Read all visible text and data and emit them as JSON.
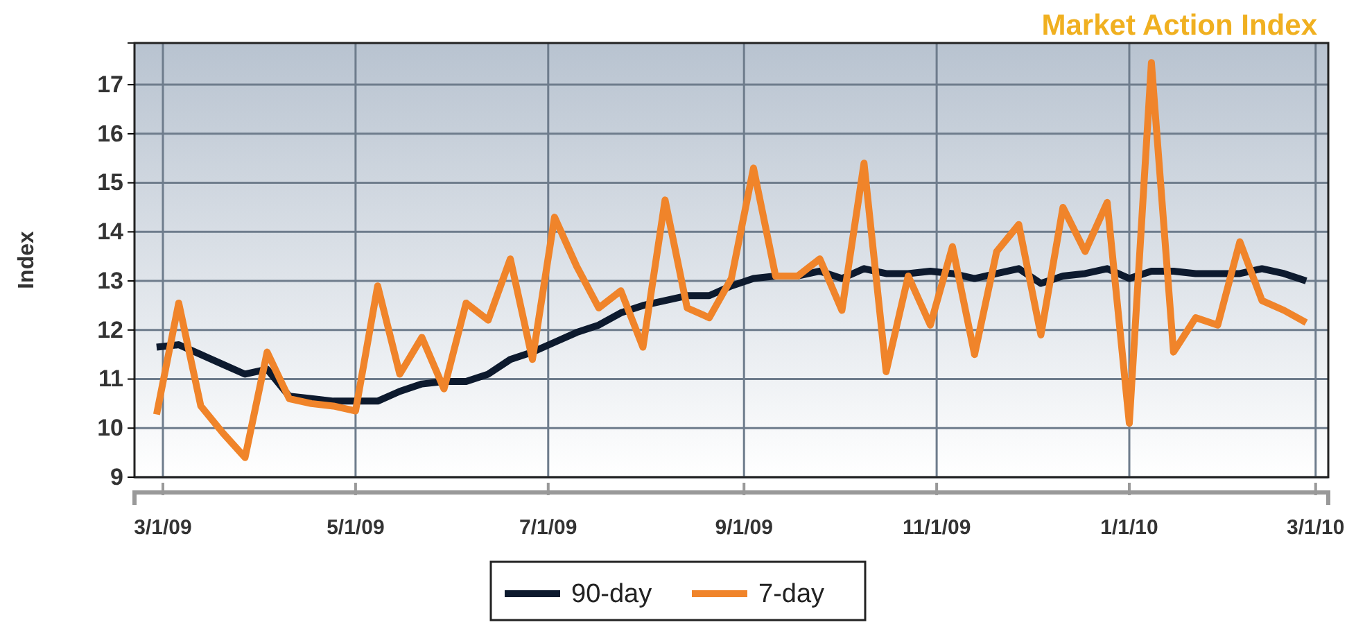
{
  "chart_data": {
    "type": "line",
    "title": "Market Action Index",
    "ylabel": "Index",
    "x": [
      "2009-02-27",
      "2009-03-06",
      "2009-03-13",
      "2009-03-20",
      "2009-03-27",
      "2009-04-03",
      "2009-04-10",
      "2009-04-17",
      "2009-04-24",
      "2009-05-01",
      "2009-05-08",
      "2009-05-15",
      "2009-05-22",
      "2009-05-29",
      "2009-06-05",
      "2009-06-12",
      "2009-06-19",
      "2009-06-26",
      "2009-07-03",
      "2009-07-10",
      "2009-07-17",
      "2009-07-24",
      "2009-07-31",
      "2009-08-07",
      "2009-08-14",
      "2009-08-21",
      "2009-08-28",
      "2009-09-04",
      "2009-09-11",
      "2009-09-18",
      "2009-09-25",
      "2009-10-02",
      "2009-10-09",
      "2009-10-16",
      "2009-10-23",
      "2009-10-30",
      "2009-11-06",
      "2009-11-13",
      "2009-11-20",
      "2009-11-27",
      "2009-12-04",
      "2009-12-11",
      "2009-12-18",
      "2009-12-25",
      "2010-01-01",
      "2010-01-08",
      "2010-01-15",
      "2010-01-22",
      "2010-01-29",
      "2010-02-05",
      "2010-02-12",
      "2010-02-19",
      "2010-02-26"
    ],
    "series": [
      {
        "name": "90-day",
        "color": "#0d1a2e",
        "values": [
          11.65,
          11.7,
          11.5,
          11.3,
          11.1,
          11.2,
          10.65,
          10.6,
          10.55,
          10.55,
          10.55,
          10.75,
          10.9,
          10.95,
          10.95,
          11.1,
          11.4,
          11.55,
          11.75,
          11.95,
          12.1,
          12.35,
          12.5,
          12.6,
          12.7,
          12.7,
          12.9,
          13.05,
          13.1,
          13.1,
          13.2,
          13.05,
          13.25,
          13.15,
          13.15,
          13.2,
          13.15,
          13.05,
          13.15,
          13.25,
          12.95,
          13.1,
          13.15,
          13.25,
          13.05,
          13.2,
          13.2,
          13.15,
          13.15,
          13.15,
          13.25,
          13.15,
          13.0
        ]
      },
      {
        "name": "7-day",
        "color": "#f0842a",
        "values": [
          10.28,
          12.55,
          10.45,
          9.9,
          9.4,
          11.55,
          10.6,
          10.5,
          10.45,
          10.35,
          12.9,
          11.1,
          11.85,
          10.8,
          12.55,
          12.2,
          13.45,
          11.4,
          14.3,
          13.3,
          12.45,
          12.8,
          11.65,
          14.65,
          12.45,
          12.25,
          13.05,
          15.3,
          13.1,
          13.1,
          13.45,
          12.4,
          15.4,
          11.15,
          13.1,
          12.1,
          13.7,
          11.5,
          13.6,
          14.15,
          11.9,
          14.5,
          13.6,
          14.6,
          10.1,
          17.45,
          11.55,
          12.25,
          12.1,
          13.8,
          12.6,
          12.4,
          12.15
        ]
      }
    ],
    "xlim": [
      "2009-02-20",
      "2010-03-05"
    ],
    "xticks": [
      {
        "value": "2009-03-01",
        "label": "3/1/09"
      },
      {
        "value": "2009-05-01",
        "label": "5/1/09"
      },
      {
        "value": "2009-07-01",
        "label": "7/1/09"
      },
      {
        "value": "2009-09-01",
        "label": "9/1/09"
      },
      {
        "value": "2009-11-01",
        "label": "11/1/09"
      },
      {
        "value": "2010-01-01",
        "label": "1/1/10"
      },
      {
        "value": "2010-03-01",
        "label": "3/1/10"
      }
    ],
    "ylim": [
      9,
      17.85
    ],
    "yticks": [
      9,
      10,
      11,
      12,
      13,
      14,
      15,
      16,
      17
    ],
    "grid": true,
    "legend": "bottom",
    "marker": "none",
    "line_style": "solid"
  }
}
